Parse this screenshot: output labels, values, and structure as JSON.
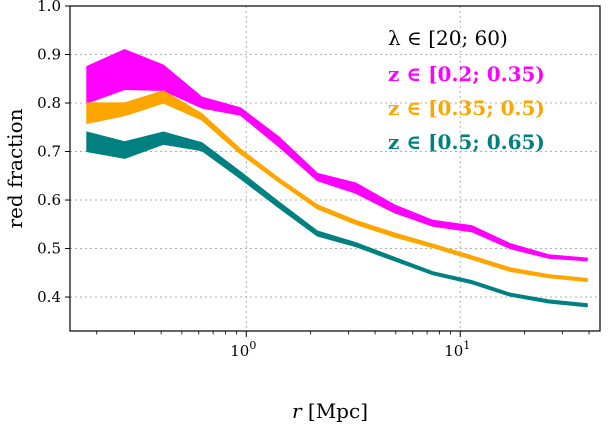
{
  "chart_data": {
    "type": "area",
    "xlabel": "r [Mpc]",
    "ylabel": "red fraction",
    "xscale": "log",
    "xlim": [
      0.15,
      45
    ],
    "ylim": [
      0.33,
      1.0
    ],
    "grid": true,
    "legend_placement": "top-right",
    "x_ticks": [
      {
        "value": 1,
        "label": "10^0"
      },
      {
        "value": 10,
        "label": "10^1"
      }
    ],
    "y_ticks": [
      0.4,
      0.5,
      0.6,
      0.7,
      0.8,
      0.9,
      1.0
    ],
    "y_tick_labels": [
      "0.4",
      "0.5",
      "0.6",
      "0.7",
      "0.8",
      "0.9",
      "1.0"
    ],
    "header_note": "λ ∈ [20; 60)",
    "x": [
      0.18,
      0.27,
      0.41,
      0.62,
      0.94,
      1.42,
      2.15,
      3.25,
      4.92,
      7.45,
      11.3,
      17.1,
      25.9,
      39.2
    ],
    "series": [
      {
        "name": "z ∈ [0.2; 0.35)",
        "color": "#ff00ff",
        "upper": [
          0.875,
          0.91,
          0.878,
          0.812,
          0.79,
          0.73,
          0.655,
          0.635,
          0.59,
          0.558,
          0.547,
          0.51,
          0.487,
          0.48
        ],
        "lower": [
          0.8,
          0.828,
          0.826,
          0.79,
          0.775,
          0.71,
          0.64,
          0.614,
          0.574,
          0.546,
          0.535,
          0.5,
          0.48,
          0.475
        ]
      },
      {
        "name": "z ∈ [0.35; 0.5)",
        "color": "#ffa500",
        "upper": [
          0.8,
          0.8,
          0.825,
          0.778,
          0.705,
          0.645,
          0.59,
          0.558,
          0.532,
          0.509,
          0.485,
          0.46,
          0.446,
          0.438
        ],
        "lower": [
          0.758,
          0.774,
          0.8,
          0.765,
          0.695,
          0.637,
          0.582,
          0.55,
          0.524,
          0.502,
          0.478,
          0.453,
          0.44,
          0.432
        ]
      },
      {
        "name": "z ∈ [0.5; 0.65)",
        "color": "#008080",
        "upper": [
          0.74,
          0.72,
          0.74,
          0.718,
          0.658,
          0.596,
          0.536,
          0.512,
          0.482,
          0.452,
          0.434,
          0.408,
          0.394,
          0.386
        ],
        "lower": [
          0.7,
          0.686,
          0.715,
          0.702,
          0.644,
          0.584,
          0.526,
          0.504,
          0.475,
          0.446,
          0.428,
          0.402,
          0.388,
          0.38
        ]
      }
    ]
  }
}
